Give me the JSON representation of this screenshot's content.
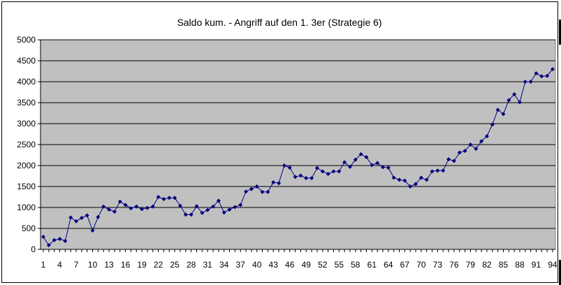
{
  "chart_data": {
    "type": "line",
    "title": "Saldo kum. - Angriff auf den 1. 3er (Strategie 6)",
    "xlabel": "",
    "ylabel": "",
    "ylim": [
      0,
      5000
    ],
    "yticks": [
      0,
      500,
      1000,
      1500,
      2000,
      2500,
      3000,
      3500,
      4000,
      4500,
      5000
    ],
    "xlim": [
      1,
      94
    ],
    "xticks": [
      1,
      4,
      7,
      10,
      13,
      16,
      19,
      22,
      25,
      28,
      31,
      34,
      37,
      40,
      43,
      46,
      49,
      52,
      55,
      58,
      61,
      64,
      67,
      70,
      73,
      76,
      79,
      82,
      85,
      88,
      91,
      94
    ],
    "grid": "horizontal",
    "legend": "none",
    "x": [
      1,
      2,
      3,
      4,
      5,
      6,
      7,
      8,
      9,
      10,
      11,
      12,
      13,
      14,
      15,
      16,
      17,
      18,
      19,
      20,
      21,
      22,
      23,
      24,
      25,
      26,
      27,
      28,
      29,
      30,
      31,
      32,
      33,
      34,
      35,
      36,
      37,
      38,
      39,
      40,
      41,
      42,
      43,
      44,
      45,
      46,
      47,
      48,
      49,
      50,
      51,
      52,
      53,
      54,
      55,
      56,
      57,
      58,
      59,
      60,
      61,
      62,
      63,
      64,
      65,
      66,
      67,
      68,
      69,
      70,
      71,
      72,
      73,
      74,
      75,
      76,
      77,
      78,
      79,
      80,
      81,
      82,
      83,
      84,
      85,
      86,
      87,
      88,
      89,
      90,
      91,
      92,
      93,
      94
    ],
    "series": [
      {
        "values": [
          300,
          100,
          220,
          250,
          200,
          760,
          670,
          750,
          810,
          450,
          770,
          1020,
          950,
          900,
          1140,
          1060,
          980,
          1020,
          960,
          990,
          1020,
          1250,
          1200,
          1230,
          1230,
          1040,
          830,
          830,
          1030,
          870,
          940,
          1020,
          1160,
          880,
          950,
          1010,
          1060,
          1380,
          1440,
          1500,
          1370,
          1370,
          1600,
          1580,
          2000,
          1950,
          1730,
          1760,
          1700,
          1700,
          1940,
          1860,
          1800,
          1860,
          1860,
          2080,
          1970,
          2140,
          2270,
          2200,
          2010,
          2060,
          1960,
          1950,
          1710,
          1660,
          1640,
          1500,
          1560,
          1710,
          1660,
          1860,
          1880,
          1880,
          2150,
          2110,
          2310,
          2350,
          2500,
          2400,
          2580,
          2700,
          2980,
          3330,
          3230,
          3560,
          3700,
          3510,
          4000,
          4000,
          4200,
          4130,
          4140,
          4300
        ]
      }
    ],
    "colors": {
      "plot_area": "#c0c0c0",
      "line": "#000080",
      "marker": "#000080",
      "gridline": "#000000"
    }
  }
}
